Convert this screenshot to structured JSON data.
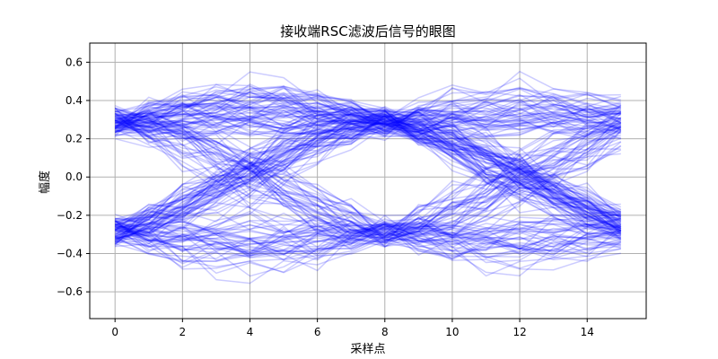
{
  "chart_data": {
    "type": "line",
    "title": "接收端RSC滤波后信号的眼图",
    "xlabel": "采样点",
    "ylabel": "幅度",
    "xlim": [
      -0.75,
      15.75
    ],
    "ylim": [
      -0.74,
      0.7
    ],
    "xticks": [
      0,
      2,
      4,
      6,
      8,
      10,
      12,
      14
    ],
    "yticks": [
      -0.6,
      -0.4,
      -0.2,
      0.0,
      0.2,
      0.4,
      0.6
    ],
    "ytick_labels": [
      "−0.6",
      "−0.4",
      "−0.2",
      "0.0",
      "0.2",
      "0.4",
      "0.6"
    ],
    "x": [
      0,
      1,
      2,
      3,
      4,
      5,
      6,
      7,
      8,
      9,
      10,
      11,
      12,
      13,
      14,
      15
    ],
    "samples_per_symbol": 8,
    "trace_count": 200,
    "eye_levels": [
      -0.3,
      0.3
    ],
    "peak_amplitude": 0.68,
    "grid": true,
    "legend": "none",
    "line_color": "#0000ff",
    "line_alpha": 0.2
  }
}
